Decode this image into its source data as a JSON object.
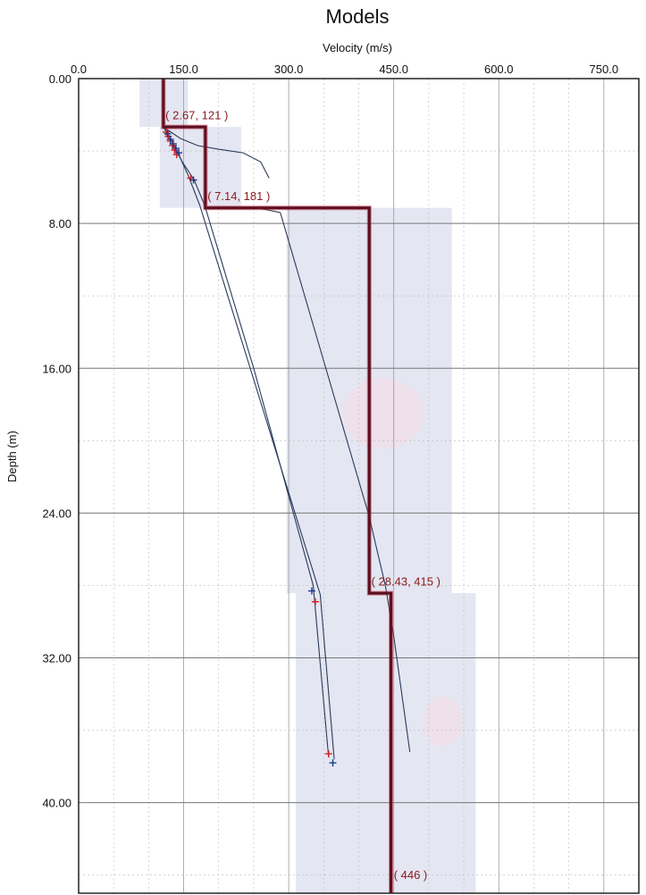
{
  "chart_data": {
    "type": "line",
    "title": "Models",
    "xlabel": "Velocity (m/s)",
    "ylabel": "Depth (m)",
    "xlim": [
      0,
      800
    ],
    "ylim": [
      0,
      45
    ],
    "x_axis_position": "top",
    "y_inverted": true,
    "grid": true,
    "x_ticks": [
      "0.0",
      "150.0",
      "300.0",
      "450.0",
      "600.0",
      "750.0"
    ],
    "x_tick_values": [
      0,
      150,
      300,
      450,
      600,
      750
    ],
    "y_ticks": [
      "0.00",
      "8.00",
      "16.00",
      "24.00",
      "32.00",
      "40.00"
    ],
    "y_tick_values": [
      0,
      8,
      16,
      24,
      32,
      40
    ],
    "colors": {
      "model": "#5a1020",
      "model_outline": "#c0203a",
      "curve": "#2a3a5a",
      "band": "#dfe2f0",
      "band_pink": "#f5dde6",
      "marker_red": "#d02020",
      "marker_blue": "#1a3a8a",
      "grid": "#bbbbbb",
      "annotation": "#8b1a1a"
    },
    "series": [
      {
        "role": "model",
        "x": [
          121,
          121,
          181,
          181,
          415,
          415,
          446,
          446
        ],
        "y": [
          0,
          2.67,
          2.67,
          7.14,
          7.14,
          28.43,
          28.43,
          45
        ]
      },
      {
        "role": "curve",
        "x": [
          121,
          145,
          170,
          200,
          235,
          260,
          272
        ],
        "y": [
          2.67,
          3.3,
          3.7,
          3.9,
          4.1,
          4.6,
          5.5
        ]
      },
      {
        "role": "curve",
        "x": [
          181,
          255,
          288,
          415,
          427,
          438,
          450,
          473
        ],
        "y": [
          7.14,
          7.14,
          7.4,
          24.2,
          26.2,
          28.0,
          30.8,
          37.2
        ]
      },
      {
        "role": "curve",
        "x": [
          121,
          135,
          148,
          165,
          180,
          250,
          335,
          357
        ],
        "y": [
          2.67,
          3.6,
          4.6,
          5.6,
          7.0,
          16.0,
          28.0,
          37.5
        ]
      },
      {
        "role": "curve",
        "x": [
          121,
          130,
          143,
          157,
          173,
          245,
          345,
          365
        ],
        "y": [
          2.67,
          3.2,
          4.2,
          5.4,
          7.0,
          16.0,
          28.5,
          37.6
        ]
      }
    ],
    "markers_red": [
      {
        "x": 125,
        "y": 2.95
      },
      {
        "x": 128,
        "y": 3.2
      },
      {
        "x": 131,
        "y": 3.45
      },
      {
        "x": 134,
        "y": 3.7
      },
      {
        "x": 137,
        "y": 3.95
      },
      {
        "x": 140,
        "y": 4.2
      },
      {
        "x": 160,
        "y": 5.5
      },
      {
        "x": 338,
        "y": 28.9
      },
      {
        "x": 357,
        "y": 37.3
      }
    ],
    "markers_blue": [
      {
        "x": 127,
        "y": 3.05
      },
      {
        "x": 131,
        "y": 3.35
      },
      {
        "x": 135,
        "y": 3.6
      },
      {
        "x": 139,
        "y": 3.85
      },
      {
        "x": 143,
        "y": 4.1
      },
      {
        "x": 164,
        "y": 5.6
      },
      {
        "x": 333,
        "y": 28.3
      },
      {
        "x": 363,
        "y": 37.8
      }
    ],
    "bands": [
      {
        "x0": 87,
        "x1": 156,
        "y0": 0,
        "y1": 2.67
      },
      {
        "x0": 116,
        "x1": 232,
        "y0": 2.67,
        "y1": 7.14
      },
      {
        "x0": 297,
        "x1": 533,
        "y0": 7.14,
        "y1": 28.43
      },
      {
        "x0": 310,
        "x1": 567,
        "y0": 28.43,
        "y1": 45
      }
    ],
    "annotations": [
      {
        "text": "( 2.67, 121 )",
        "x": 124,
        "y": 2.25
      },
      {
        "text": "( 7.14, 181 )",
        "x": 184,
        "y": 6.7
      },
      {
        "text": "( 28.43, 415 )",
        "x": 418,
        "y": 28.0
      },
      {
        "text": "( 446 )",
        "x": 450,
        "y": 44.2
      }
    ]
  }
}
